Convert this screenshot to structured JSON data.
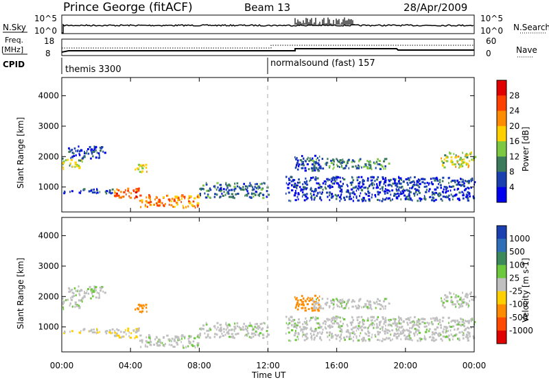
{
  "header": {
    "station": "Prince George (fitACF)",
    "beam": "Beam 13",
    "date": "28/Apr/2009"
  },
  "status_panels": {
    "nsky_label": "N.Sky",
    "nsky_ticks": [
      "10^5",
      "10^0"
    ],
    "nsearch_label": "N.Search",
    "freq_label_top": "Freq.",
    "freq_label_unit": "[MHz]",
    "freq_ticks": [
      "18",
      "8"
    ],
    "nave_ticks": [
      "60",
      "0"
    ],
    "nave_label": "Nave",
    "cpid_label": "CPID",
    "cpid_segments": [
      {
        "name": "themis 3300",
        "start_hour": 0
      },
      {
        "name": "normalsound (fast) 157",
        "start_hour": 12
      }
    ]
  },
  "x_axis": {
    "label": "Time UT",
    "ticks": [
      "00:00",
      "04:00",
      "08:00",
      "12:00",
      "16:00",
      "20:00",
      "00:00"
    ],
    "range_hours": [
      0,
      24
    ]
  },
  "power_panel": {
    "ylabel": "Slant Range [km]",
    "yticks": [
      "1000",
      "2000",
      "3000",
      "4000"
    ],
    "colorbar_label": "Power [dB]",
    "colorbar_ticks": [
      "4",
      "8",
      "12",
      "16",
      "20",
      "24",
      "28"
    ],
    "colors": [
      "#0000ee",
      "#1a3fb0",
      "#3c7a5c",
      "#7cc840",
      "#ffd000",
      "#ff8c00",
      "#ff4000",
      "#e00000"
    ]
  },
  "velocity_panel": {
    "ylabel": "Slant Range [km]",
    "yticks": [
      "1000",
      "2000",
      "3000",
      "4000"
    ],
    "colorbar_label": "Velocity [m s-1]",
    "colorbar_ticks": [
      "1000",
      "500",
      "100",
      "25",
      "-25",
      "-100",
      "-500",
      "-1000"
    ],
    "colors": [
      "#1a3fb0",
      "#2f6fb8",
      "#3c8a5c",
      "#6cc83c",
      "#c0c0c0",
      "#ffd000",
      "#ff8c00",
      "#ff4a00",
      "#e00000"
    ]
  },
  "chart_data": {
    "type": "heatmap",
    "x_unit": "hours UT",
    "y_unit": "km",
    "ylim": [
      180,
      4600
    ],
    "xlim": [
      0,
      24
    ],
    "regions": [
      {
        "x": [
          0,
          1.2
        ],
        "y": [
          1550,
          1900
        ],
        "power_db": 14,
        "velocity": 10
      },
      {
        "x": [
          0.3,
          2.5
        ],
        "y": [
          1900,
          2300
        ],
        "power_db": 6,
        "velocity": 10
      },
      {
        "x": [
          0,
          3
        ],
        "y": [
          750,
          900
        ],
        "power_db": 6,
        "velocity": -10
      },
      {
        "x": [
          3,
          4.5
        ],
        "y": [
          600,
          950
        ],
        "power_db": 24,
        "velocity": -20
      },
      {
        "x": [
          4.2,
          5
        ],
        "y": [
          1400,
          1700
        ],
        "power_db": 18,
        "velocity": -150
      },
      {
        "x": [
          4.5,
          8
        ],
        "y": [
          280,
          700
        ],
        "power_db": 22,
        "velocity": 10
      },
      {
        "x": [
          8,
          12
        ],
        "y": [
          600,
          1100
        ],
        "power_db": 8,
        "velocity": 5
      },
      {
        "x": [
          13.5,
          15
        ],
        "y": [
          1500,
          2000
        ],
        "power_db": 6,
        "velocity": -200
      },
      {
        "x": [
          14.5,
          19
        ],
        "y": [
          1550,
          1900
        ],
        "power_db": 10,
        "velocity": 5
      },
      {
        "x": [
          13,
          24
        ],
        "y": [
          500,
          1300
        ],
        "power_db": 5,
        "velocity": 5
      },
      {
        "x": [
          22,
          24
        ],
        "y": [
          1600,
          2100
        ],
        "power_db": 16,
        "velocity": 10
      }
    ]
  }
}
